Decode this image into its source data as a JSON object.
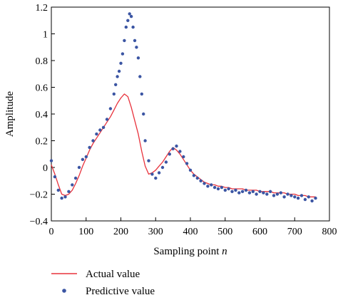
{
  "chart_data": {
    "type": "line",
    "xlabel": "Sampling point",
    "xlabel_var": "n",
    "ylabel": "Amplitude",
    "xlim": [
      0,
      800
    ],
    "ylim": [
      -0.4,
      1.2
    ],
    "x_ticks": [
      0,
      100,
      200,
      300,
      400,
      500,
      600,
      700,
      800
    ],
    "y_ticks": [
      -0.4,
      -0.2,
      0,
      0.2,
      0.4,
      0.6,
      0.8,
      1,
      1.2
    ],
    "x_tick_labels": [
      "0",
      "100",
      "200",
      "300",
      "400",
      "500",
      "600",
      "700",
      "800"
    ],
    "y_tick_labels": [
      "−0.4",
      "−0.2",
      "0",
      "0.2",
      "0.4",
      "0.6",
      "0.8",
      "1",
      "1.2"
    ],
    "grid": false,
    "legend_position": "bottom-left",
    "series": [
      {
        "name": "Actual value",
        "style": "line",
        "color": "#e8323c",
        "x": [
          0,
          10,
          20,
          30,
          40,
          50,
          60,
          70,
          80,
          90,
          100,
          110,
          120,
          130,
          140,
          150,
          160,
          170,
          180,
          190,
          200,
          210,
          220,
          230,
          240,
          250,
          260,
          270,
          280,
          290,
          300,
          310,
          320,
          330,
          340,
          350,
          360,
          370,
          380,
          390,
          400,
          410,
          420,
          430,
          440,
          450,
          460,
          470,
          480,
          490,
          500,
          510,
          520,
          530,
          540,
          550,
          560,
          570,
          580,
          590,
          600,
          610,
          620,
          630,
          640,
          650,
          660,
          670,
          680,
          690,
          700,
          710,
          720,
          730,
          740,
          750,
          760
        ],
        "y": [
          0.02,
          -0.05,
          -0.13,
          -0.2,
          -0.21,
          -0.2,
          -0.17,
          -0.12,
          -0.06,
          0.01,
          0.07,
          0.13,
          0.18,
          0.22,
          0.26,
          0.3,
          0.34,
          0.38,
          0.43,
          0.48,
          0.52,
          0.55,
          0.53,
          0.45,
          0.35,
          0.25,
          0.12,
          0.01,
          -0.05,
          -0.04,
          -0.02,
          0.01,
          0.04,
          0.08,
          0.12,
          0.15,
          0.13,
          0.1,
          0.06,
          0.02,
          -0.02,
          -0.05,
          -0.07,
          -0.09,
          -0.11,
          -0.12,
          -0.13,
          -0.13,
          -0.14,
          -0.14,
          -0.15,
          -0.15,
          -0.16,
          -0.16,
          -0.16,
          -0.16,
          -0.17,
          -0.17,
          -0.17,
          -0.17,
          -0.18,
          -0.18,
          -0.18,
          -0.18,
          -0.19,
          -0.19,
          -0.19,
          -0.19,
          -0.2,
          -0.2,
          -0.2,
          -0.21,
          -0.21,
          -0.21,
          -0.22,
          -0.22,
          -0.22
        ]
      },
      {
        "name": "Predictive value",
        "style": "markers",
        "color": "#3b55a3",
        "x": [
          0,
          10,
          20,
          30,
          40,
          50,
          60,
          70,
          80,
          90,
          100,
          110,
          120,
          130,
          140,
          150,
          160,
          170,
          180,
          185,
          190,
          195,
          200,
          205,
          210,
          215,
          220,
          225,
          230,
          235,
          240,
          245,
          250,
          255,
          260,
          265,
          270,
          280,
          290,
          300,
          310,
          320,
          330,
          340,
          350,
          360,
          370,
          380,
          390,
          400,
          410,
          420,
          430,
          440,
          450,
          460,
          470,
          480,
          490,
          500,
          510,
          520,
          530,
          540,
          550,
          560,
          570,
          580,
          590,
          600,
          610,
          620,
          630,
          640,
          650,
          660,
          670,
          680,
          690,
          700,
          710,
          720,
          730,
          740,
          750,
          760
        ],
        "y": [
          0.05,
          -0.07,
          -0.17,
          -0.23,
          -0.22,
          -0.18,
          -0.13,
          -0.08,
          0.0,
          0.06,
          0.08,
          0.15,
          0.2,
          0.25,
          0.28,
          0.3,
          0.36,
          0.44,
          0.55,
          0.62,
          0.68,
          0.72,
          0.78,
          0.85,
          0.95,
          1.05,
          1.1,
          1.15,
          1.13,
          1.05,
          0.95,
          0.9,
          0.82,
          0.68,
          0.55,
          0.4,
          0.2,
          0.05,
          -0.05,
          -0.08,
          -0.04,
          0.0,
          0.04,
          0.1,
          0.14,
          0.16,
          0.12,
          0.08,
          0.03,
          -0.02,
          -0.06,
          -0.08,
          -0.1,
          -0.12,
          -0.14,
          -0.13,
          -0.15,
          -0.16,
          -0.15,
          -0.17,
          -0.16,
          -0.18,
          -0.17,
          -0.19,
          -0.18,
          -0.17,
          -0.19,
          -0.18,
          -0.2,
          -0.18,
          -0.19,
          -0.2,
          -0.18,
          -0.21,
          -0.2,
          -0.19,
          -0.22,
          -0.2,
          -0.21,
          -0.22,
          -0.23,
          -0.21,
          -0.24,
          -0.22,
          -0.25,
          -0.23
        ]
      }
    ]
  }
}
